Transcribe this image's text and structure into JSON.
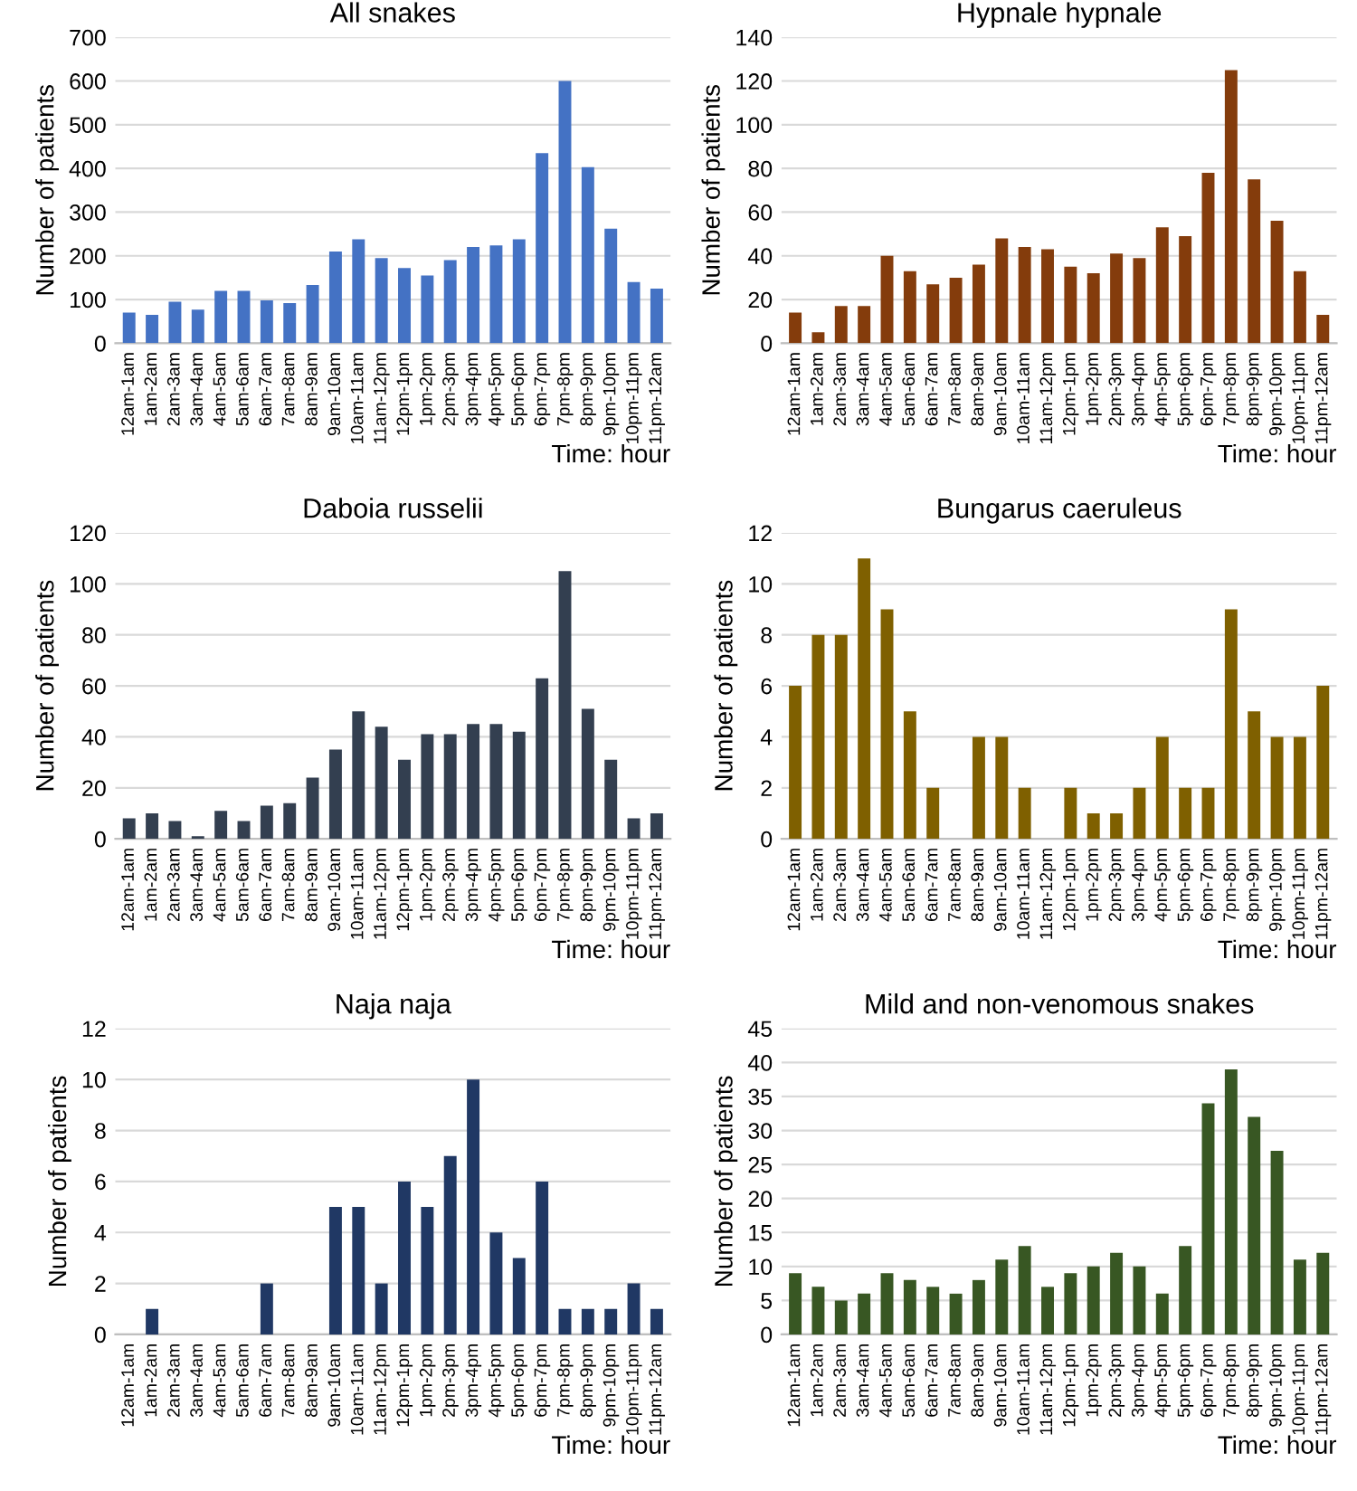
{
  "chart_data": [
    {
      "type": "bar",
      "title": "All snakes",
      "ylabel": "Number of patients",
      "xlabel": "Time: hour",
      "categories": [
        "12am-1am",
        "1am-2am",
        "2am-3am",
        "3am-4am",
        "4am-5am",
        "5am-6am",
        "6am-7am",
        "7am-8am",
        "8am-9am",
        "9am-10am",
        "10am-11am",
        "11am-12pm",
        "12pm-1pm",
        "1pm-2pm",
        "2pm-3pm",
        "3pm-4pm",
        "4pm-5pm",
        "5pm-6pm",
        "6pm-7pm",
        "7pm-8pm",
        "8pm-9pm",
        "9pm-10pm",
        "10pm-11pm",
        "11pm-12am"
      ],
      "color": "#4472c4",
      "values": [
        70,
        65,
        95,
        77,
        120,
        120,
        98,
        92,
        133,
        210,
        238,
        195,
        172,
        155,
        190,
        220,
        224,
        238,
        435,
        600,
        403,
        262,
        140,
        125
      ],
      "ylim": [
        0,
        700
      ],
      "yticks": [
        0,
        100,
        200,
        300,
        400,
        500,
        600,
        700
      ],
      "grid": "y",
      "legend": false
    },
    {
      "type": "bar",
      "title": "Hypnale hypnale",
      "ylabel": "Number of patients",
      "xlabel": "Time: hour",
      "categories": [
        "12am-1am",
        "1am-2am",
        "2am-3am",
        "3am-4am",
        "4am-5am",
        "5am-6am",
        "6am-7am",
        "7am-8am",
        "8am-9am",
        "9am-10am",
        "10am-11am",
        "11am-12pm",
        "12pm-1pm",
        "1pm-2pm",
        "2pm-3pm",
        "3pm-4pm",
        "4pm-5pm",
        "5pm-6pm",
        "6pm-7pm",
        "7pm-8pm",
        "8pm-9pm",
        "9pm-10pm",
        "10pm-11pm",
        "11pm-12am"
      ],
      "color": "#843c0c",
      "values": [
        14,
        5,
        17,
        17,
        40,
        33,
        27,
        30,
        36,
        48,
        44,
        43,
        35,
        32,
        41,
        39,
        53,
        49,
        78,
        125,
        75,
        56,
        33,
        13
      ],
      "ylim": [
        0,
        140
      ],
      "yticks": [
        0,
        20,
        40,
        60,
        80,
        100,
        120,
        140
      ],
      "grid": "y",
      "legend": false
    },
    {
      "type": "bar",
      "title": "Daboia russelii",
      "ylabel": "Number of patients",
      "xlabel": "Time: hour",
      "categories": [
        "12am-1am",
        "1am-2am",
        "2am-3am",
        "3am-4am",
        "4am-5am",
        "5am-6am",
        "6am-7am",
        "7am-8am",
        "8am-9am",
        "9am-10am",
        "10am-11am",
        "11am-12pm",
        "12pm-1pm",
        "1pm-2pm",
        "2pm-3pm",
        "3pm-4pm",
        "4pm-5pm",
        "5pm-6pm",
        "6pm-7pm",
        "7pm-8pm",
        "8pm-9pm",
        "9pm-10pm",
        "10pm-11pm",
        "11pm-12am"
      ],
      "color": "#333f50",
      "values": [
        8,
        10,
        7,
        1,
        11,
        7,
        13,
        14,
        24,
        35,
        50,
        44,
        31,
        41,
        41,
        45,
        45,
        42,
        63,
        105,
        51,
        31,
        8,
        10
      ],
      "ylim": [
        0,
        120
      ],
      "yticks": [
        0,
        20,
        40,
        60,
        80,
        100,
        120
      ],
      "grid": "y",
      "legend": false
    },
    {
      "type": "bar",
      "title": "Bungarus caeruleus",
      "ylabel": "Number of patients",
      "xlabel": "Time: hour",
      "categories": [
        "12am-1am",
        "1am-2am",
        "2am-3am",
        "3am-4am",
        "4am-5am",
        "5am-6am",
        "6am-7am",
        "7am-8am",
        "8am-9am",
        "9am-10am",
        "10am-11am",
        "11am-12pm",
        "12pm-1pm",
        "1pm-2pm",
        "2pm-3pm",
        "3pm-4pm",
        "4pm-5pm",
        "5pm-6pm",
        "6pm-7pm",
        "7pm-8pm",
        "8pm-9pm",
        "9pm-10pm",
        "10pm-11pm",
        "11pm-12am"
      ],
      "color": "#7f6000",
      "values": [
        6,
        8,
        8,
        11,
        9,
        5,
        2,
        0,
        4,
        4,
        2,
        0,
        2,
        1,
        1,
        2,
        4,
        2,
        2,
        9,
        5,
        4,
        4,
        6
      ],
      "ylim": [
        0,
        12
      ],
      "yticks": [
        0,
        2,
        4,
        6,
        8,
        10,
        12
      ],
      "grid": "y",
      "legend": false
    },
    {
      "type": "bar",
      "title": "Naja naja",
      "ylabel": "Number of patients",
      "xlabel": "Time: hour",
      "categories": [
        "12am-1am",
        "1am-2am",
        "2am-3am",
        "3am-4am",
        "4am-5am",
        "5am-6am",
        "6am-7am",
        "7am-8am",
        "8am-9am",
        "9am-10am",
        "10am-11am",
        "11am-12pm",
        "12pm-1pm",
        "1pm-2pm",
        "2pm-3pm",
        "3pm-4pm",
        "4pm-5pm",
        "5pm-6pm",
        "6pm-7pm",
        "7pm-8pm",
        "8pm-9pm",
        "9pm-10pm",
        "10pm-11pm",
        "11pm-12am"
      ],
      "color": "#203864",
      "values": [
        0,
        1,
        0,
        0,
        0,
        0,
        2,
        0,
        0,
        5,
        5,
        2,
        6,
        5,
        7,
        10,
        4,
        3,
        6,
        1,
        1,
        1,
        2,
        1
      ],
      "ylim": [
        0,
        12
      ],
      "yticks": [
        0,
        2,
        4,
        6,
        8,
        10,
        12
      ],
      "grid": "y",
      "legend": false
    },
    {
      "type": "bar",
      "title": "Mild and non-venomous snakes",
      "ylabel": "Number of patients",
      "xlabel": "Time: hour",
      "categories": [
        "12am-1am",
        "1am-2am",
        "2am-3am",
        "3am-4am",
        "4am-5am",
        "5am-6am",
        "6am-7am",
        "7am-8am",
        "8am-9am",
        "9am-10am",
        "10am-11am",
        "11am-12pm",
        "12pm-1pm",
        "1pm-2pm",
        "2pm-3pm",
        "3pm-4pm",
        "4pm-5pm",
        "5pm-6pm",
        "6pm-7pm",
        "7pm-8pm",
        "8pm-9pm",
        "9pm-10pm",
        "10pm-11pm",
        "11pm-12am"
      ],
      "color": "#385723",
      "values": [
        9,
        7,
        5,
        6,
        9,
        8,
        7,
        6,
        8,
        11,
        13,
        7,
        9,
        10,
        12,
        10,
        6,
        13,
        34,
        39,
        32,
        27,
        11,
        12
      ],
      "ylim": [
        0,
        45
      ],
      "yticks": [
        0,
        5,
        10,
        15,
        20,
        25,
        30,
        35,
        40,
        45
      ],
      "grid": "y",
      "legend": false
    }
  ]
}
